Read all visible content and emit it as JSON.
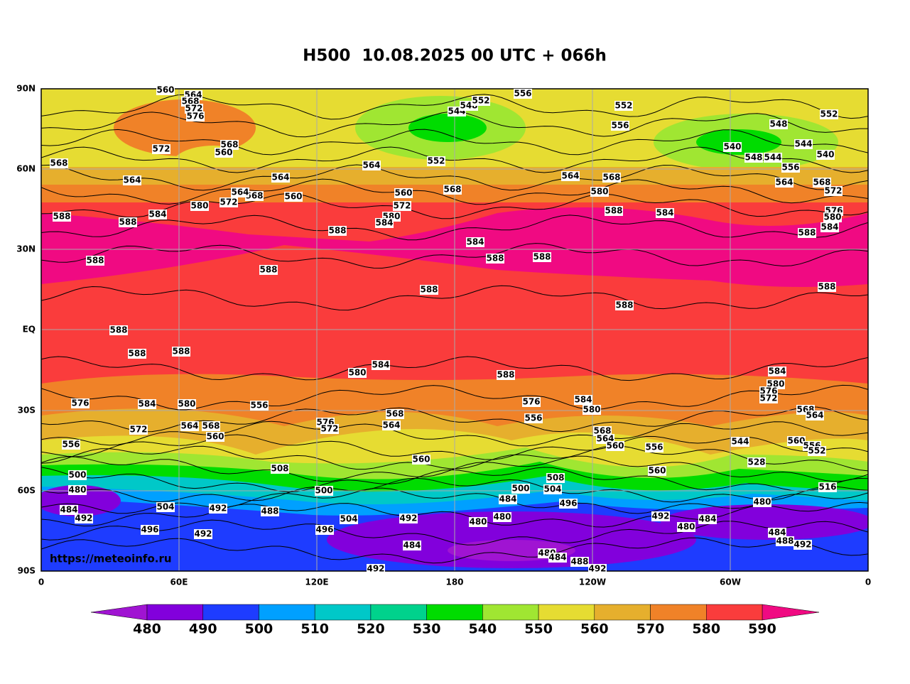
{
  "title": "H500  10.08.2025 00 UTC + 066h",
  "source": "https://meteoinfo.ru",
  "map": {
    "lat_labels": [
      "90N",
      "60N",
      "30N",
      "EQ",
      "30S",
      "60S",
      "90S"
    ],
    "lon_labels": [
      "0",
      "60E",
      "120E",
      "180",
      "120W",
      "60W",
      "0"
    ],
    "contour_labels": [
      "560",
      "564",
      "568",
      "572",
      "576",
      "572",
      "568",
      "560",
      "568",
      "564",
      "564",
      "560",
      "568",
      "564",
      "572",
      "580",
      "588",
      "588",
      "584",
      "588",
      "588",
      "564",
      "552",
      "560",
      "572",
      "580",
      "584",
      "588",
      "568",
      "584",
      "588",
      "588",
      "544",
      "548",
      "552",
      "556",
      "552",
      "556",
      "564",
      "568",
      "580",
      "588",
      "584",
      "588",
      "588",
      "548",
      "544",
      "540",
      "548",
      "544",
      "540",
      "552",
      "556",
      "564",
      "568",
      "572",
      "576",
      "580",
      "584",
      "588",
      "588",
      "588",
      "588",
      "588",
      "580",
      "584",
      "588",
      "584",
      "580",
      "576",
      "572",
      "568",
      "564",
      "576",
      "584",
      "580",
      "572",
      "564",
      "568",
      "560",
      "556",
      "576",
      "572",
      "568",
      "564",
      "560",
      "576",
      "556",
      "584",
      "580",
      "568",
      "564",
      "560",
      "556",
      "560",
      "544",
      "560",
      "556",
      "552",
      "516",
      "528",
      "508",
      "556",
      "500",
      "480",
      "484",
      "492",
      "504",
      "492",
      "488",
      "496",
      "492",
      "500",
      "504",
      "496",
      "492",
      "484",
      "480",
      "480",
      "484",
      "500",
      "504",
      "508",
      "496",
      "480",
      "484",
      "488",
      "492",
      "492",
      "492",
      "480",
      "484",
      "480",
      "484",
      "488",
      "492"
    ]
  },
  "colorbar": {
    "levels": [
      480,
      490,
      500,
      510,
      520,
      530,
      540,
      550,
      560,
      570,
      580,
      590
    ],
    "colors": [
      "#8200dc",
      "#1e3cff",
      "#00a0ff",
      "#00c8c8",
      "#00d28c",
      "#00dc00",
      "#a0e632",
      "#e6dc32",
      "#e6af2d",
      "#f08228",
      "#fa3c3c"
    ],
    "under_color": "#a014d2",
    "over_color": "#f00a82"
  }
}
